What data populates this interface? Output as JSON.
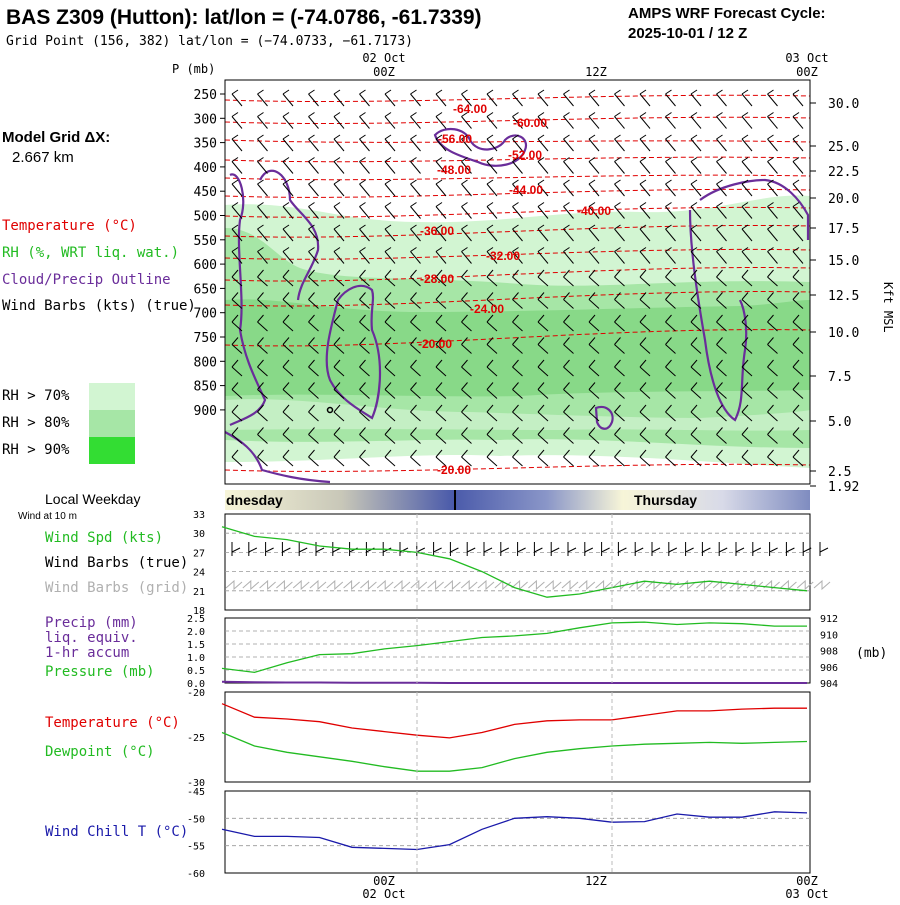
{
  "header": {
    "title": "BAS Z309 (Hutton):  lat/lon = (-74.0786, -61.7339)",
    "grid_point": "Grid Point (156, 382) lat/lon = (−74.0733, −61.7173)",
    "forecast_label": "AMPS WRF Forecast Cycle:",
    "forecast_cycle": "2025-10-01 / 12  Z"
  },
  "model_grid": {
    "label": "Model Grid ΔX:",
    "value": "2.667 km"
  },
  "colors": {
    "temperature": "#e00000",
    "rh": "#22bb22",
    "cloud": "#6a2d9a",
    "wind": "#000000",
    "wind_grid": "#b0b0b0",
    "dewpoint": "#22bb22",
    "wind_chill": "#1a1aaa",
    "rh70": "#d2f5d2",
    "rh80": "#a6e6a6",
    "rh90": "#33dd33",
    "night": "#4a5aaa",
    "day": "#f7f5d8"
  },
  "legend": {
    "temperature": "Temperature (°C)",
    "rh": "RH (%, WRT liq. wat.)",
    "cloud": "Cloud/Precip Outline",
    "wind": "Wind Barbs (kts) (true)",
    "rh_levels": [
      "RH > 70%",
      "RH > 80%",
      "RH > 90%"
    ]
  },
  "time_axis": {
    "top_dates": [
      "02 Oct",
      "03 Oct"
    ],
    "top_hours": [
      "00Z",
      "12Z",
      "00Z"
    ],
    "bottom_hours": [
      "00Z",
      "12Z",
      "00Z"
    ],
    "bottom_dates": [
      "02 Oct",
      "03 Oct"
    ]
  },
  "local_weekday": {
    "label": "Local Weekday",
    "wind_note": "Wind at 10 m",
    "days": [
      "dnesday",
      "Thursday"
    ]
  },
  "cross_section": {
    "p_unit": "P (mb)",
    "pressure_ticks": [
      "250",
      "300",
      "350",
      "400",
      "450",
      "500",
      "550",
      "600",
      "650",
      "700",
      "750",
      "800",
      "850",
      "900"
    ],
    "height_ticks": [
      "30.0",
      "25.0",
      "22.5",
      "20.0",
      "17.5",
      "15.0",
      "12.5",
      "10.0",
      "7.5",
      "5.0",
      "2.5",
      "1.92"
    ],
    "height_unit": "Kft MSL",
    "temp_labels": [
      "-64.00",
      "-60.00",
      "-56.00",
      "-52.00",
      "-48.00",
      "-44.00",
      "-40.00",
      "-36.00",
      "-32.00",
      "-28.00",
      "-24.00",
      "-20.00",
      "-20.00"
    ]
  },
  "panel_wind": {
    "labels": [
      "Wind Spd (kts)",
      "Wind Barbs (true)",
      "Wind Barbs (grid)"
    ],
    "y_ticks": [
      "33",
      "30",
      "27",
      "24",
      "21",
      "18"
    ]
  },
  "panel_precip": {
    "labels": [
      "Precip (mm)",
      "liq. equiv.",
      "1-hr accum",
      "Pressure (mb)"
    ],
    "left_ticks": [
      "2.5",
      "2.0",
      "1.5",
      "1.0",
      "0.5",
      "0.0"
    ],
    "right_ticks": [
      "912",
      "910",
      "908",
      "906",
      "904"
    ],
    "right_unit": "(mb)"
  },
  "panel_temp": {
    "labels": [
      "Temperature (°C)",
      "Dewpoint (°C)"
    ],
    "y_ticks": [
      "-20",
      "-25",
      "-30"
    ]
  },
  "panel_chill": {
    "labels": [
      "Wind Chill T (°C)"
    ],
    "y_ticks": [
      "-45",
      "-50",
      "-55",
      "-60"
    ]
  },
  "chart_data": {
    "type": "line",
    "x_hours_from_start": "forecast hours; 00Z 02 Oct at hour 12, 12Z at hour 24, 00Z 03 Oct at hour 36",
    "hours": [
      0,
      2,
      4,
      6,
      8,
      10,
      12,
      14,
      16,
      18,
      20,
      22,
      24,
      26,
      28,
      30,
      32,
      34,
      36
    ],
    "wind_speed_kts": [
      31,
      29.5,
      29,
      28,
      27.5,
      27.5,
      27,
      26,
      24,
      21.5,
      20,
      20.5,
      21.5,
      22.5,
      22,
      22.5,
      22,
      21.5,
      21
    ],
    "wind_speed_ylim": [
      18,
      33
    ],
    "pressure_mb": [
      905.8,
      905.3,
      906.5,
      907.5,
      907.6,
      908.2,
      908.6,
      909.1,
      909.6,
      909.8,
      910.1,
      910.8,
      911.4,
      911.5,
      911.2,
      911.4,
      911.3,
      911.0,
      911.0
    ],
    "pressure_ylim": [
      904,
      912
    ],
    "precip_mm": [
      0.05,
      0.03,
      0.02,
      0.02,
      0.01,
      0.01,
      0.01,
      0,
      0,
      0,
      0,
      0,
      0,
      0,
      0,
      0,
      0,
      0,
      0
    ],
    "precip_ylim": [
      0,
      2.5
    ],
    "temperature_c": [
      -21.3,
      -22.8,
      -23.0,
      -23.3,
      -24.0,
      -24.4,
      -24.8,
      -25.1,
      -24.5,
      -23.6,
      -23.2,
      -23.1,
      -23.1,
      -22.6,
      -22.1,
      -22.1,
      -21.9,
      -21.8,
      -21.8
    ],
    "dewpoint_c": [
      -24.5,
      -26.0,
      -26.7,
      -27.2,
      -27.7,
      -28.3,
      -28.8,
      -28.8,
      -28.4,
      -27.4,
      -26.7,
      -26.3,
      -26.0,
      -25.8,
      -25.7,
      -25.6,
      -25.7,
      -25.6,
      -25.5
    ],
    "temp_ylim": [
      -30,
      -20
    ],
    "wind_chill_c": [
      -52,
      -53.3,
      -53.3,
      -53.5,
      -55.3,
      -55.5,
      -55.7,
      -54.8,
      -52.0,
      -50.0,
      -49.7,
      -50.0,
      -50.7,
      -50.6,
      -49.2,
      -49.8,
      -49.8,
      -48.8,
      -49.0
    ],
    "wind_chill_ylim": [
      -60,
      -45
    ],
    "series": [
      {
        "name": "Wind Spd (kts)"
      },
      {
        "name": "Pressure (mb)"
      },
      {
        "name": "Precip (mm)"
      },
      {
        "name": "Temperature (°C)"
      },
      {
        "name": "Dewpoint (°C)"
      },
      {
        "name": "Wind Chill T (°C)"
      }
    ]
  }
}
